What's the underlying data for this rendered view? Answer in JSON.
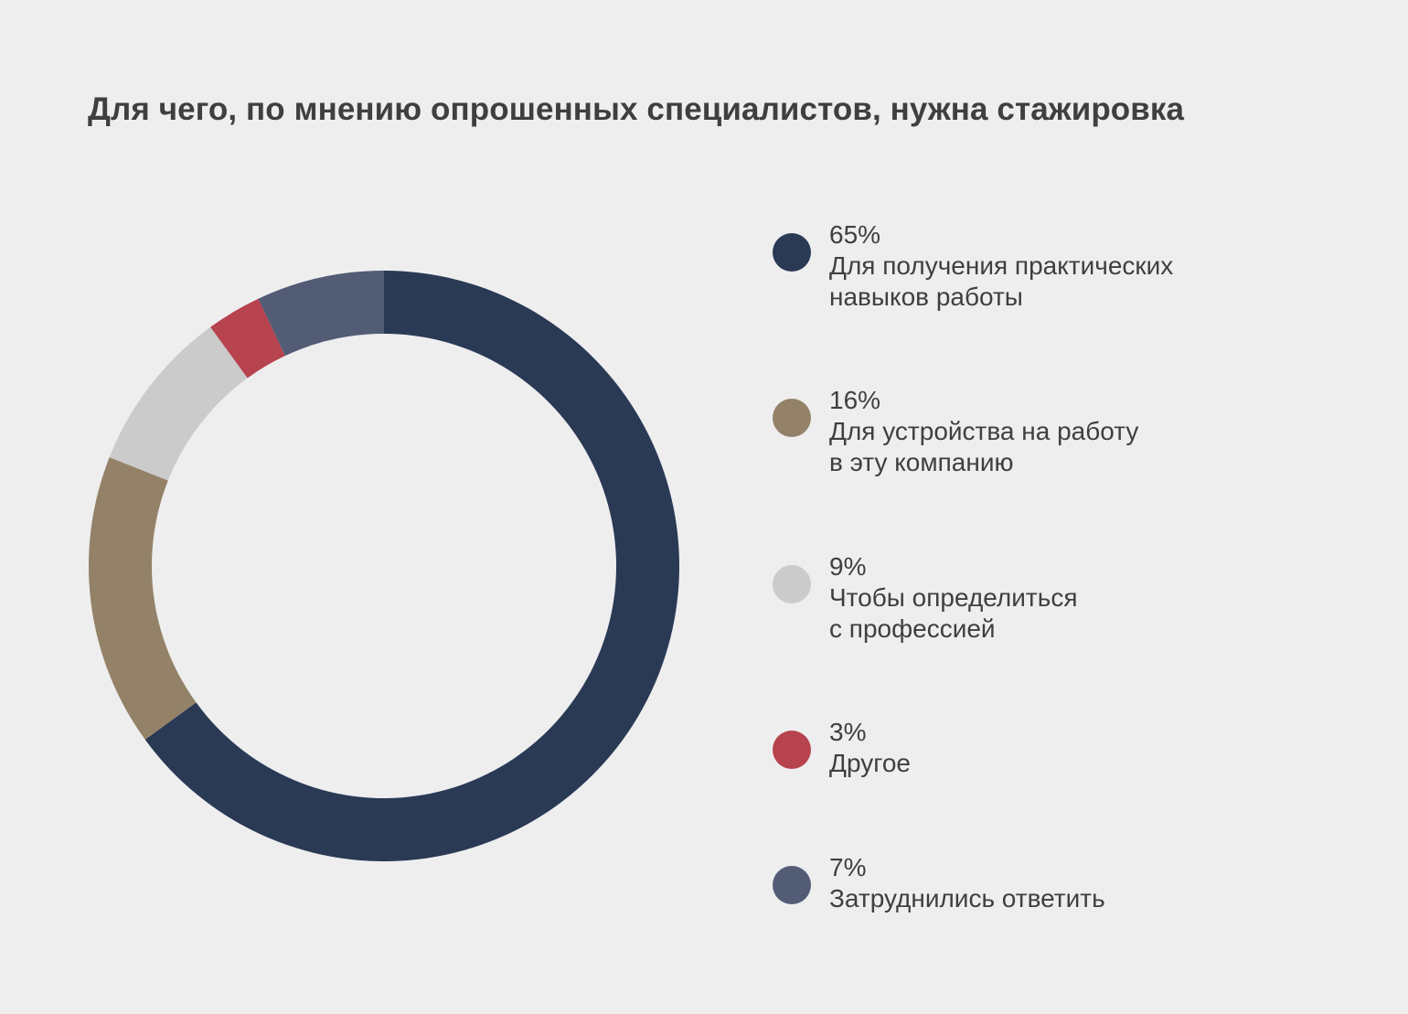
{
  "title": "Для чего, по мнению опрошенных специалистов, нужна стажировка",
  "chart_data": {
    "type": "pie",
    "variant": "donut",
    "title": "Для чего, по мнению опрошенных специалистов, нужна стажировка",
    "legend_placement": "right",
    "unit": "%",
    "slices": [
      {
        "value": 65,
        "value_label": "65%",
        "label": "Для получения практических\nнавыков работы",
        "color": "#2a3a55"
      },
      {
        "value": 16,
        "value_label": "16%",
        "label": "Для устройства на работу\nв эту компанию",
        "color": "#948268"
      },
      {
        "value": 9,
        "value_label": "9%",
        "label": "Чтобы определиться\nс профессией",
        "color": "#cbcbcb"
      },
      {
        "value": 3,
        "value_label": "3%",
        "label": "Другое",
        "color": "#b7434e"
      },
      {
        "value": 7,
        "value_label": "7%",
        "label": "Затруднились ответить",
        "color": "#525c75"
      }
    ]
  }
}
